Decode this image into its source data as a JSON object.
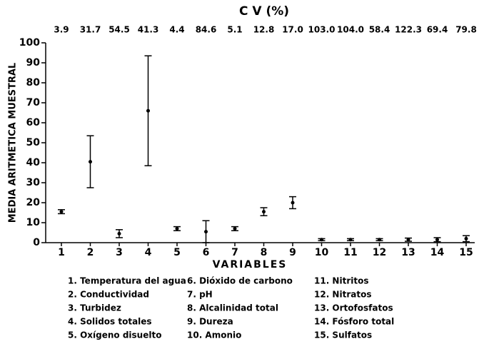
{
  "chart_data": {
    "type": "errorbar",
    "top_axis_title": "C V (%)",
    "top_labels": [
      "3.9",
      "31.7",
      "54.5",
      "41.3",
      "4.4",
      "84.6",
      "5.1",
      "12.8",
      "17.0",
      "103.0",
      "104.0",
      "58.4",
      "122.3",
      "69.4",
      "79.8"
    ],
    "y_label": "MEDIA ARITMETICA MUESTRAL",
    "x_label": "VARIABLES",
    "categories": [
      "1",
      "2",
      "3",
      "4",
      "5",
      "6",
      "7",
      "8",
      "9",
      "10",
      "11",
      "12",
      "13",
      "14",
      "15"
    ],
    "values": [
      15.5,
      40.5,
      4.5,
      66,
      7,
      5.5,
      7,
      15.5,
      20,
      1.5,
      1.5,
      1.5,
      1.5,
      1.5,
      2
    ],
    "errors": [
      1,
      13,
      2,
      27.5,
      1,
      5.5,
      1,
      2,
      3,
      0.5,
      0.5,
      0.5,
      0.8,
      1,
      1.5
    ],
    "color": "#000000",
    "ylim": [
      0,
      100
    ],
    "yticks": [
      0,
      10,
      20,
      30,
      40,
      50,
      60,
      70,
      80,
      90,
      100
    ],
    "legend_items": [
      "1. Temperatura del agua",
      "2. Conductividad",
      "3. Turbidez",
      "4. Solidos totales",
      "5. Oxígeno disuelto",
      "6. Dióxido de carbono",
      "7. pH",
      "8. Alcalinidad total",
      "9. Dureza",
      "10. Amonio",
      "11. Nitritos",
      "12. Nitratos",
      "13. Ortofosfatos",
      "14. Fósforo total",
      "15. Sulfatos"
    ]
  }
}
